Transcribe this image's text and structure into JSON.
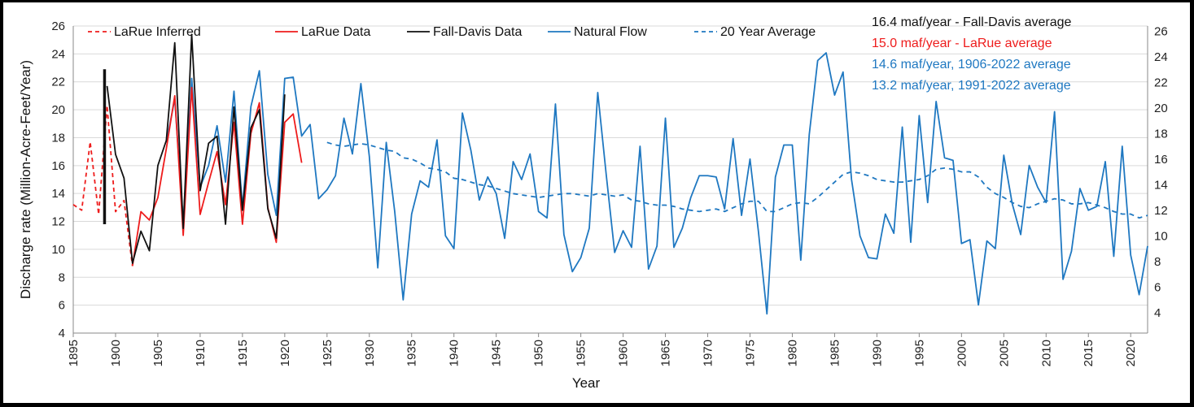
{
  "chart_data": {
    "type": "line",
    "title": "",
    "xlabel": "Year",
    "ylabel": "Discharge rate (Million-Acre-Feet/Year)",
    "xlim": [
      1895,
      2022
    ],
    "ylim": [
      4,
      26
    ],
    "y2lim": [
      2.4,
      26.4
    ],
    "xticks": [
      "1895",
      "1900",
      "1905",
      "1910",
      "1915",
      "1920",
      "1925",
      "1930",
      "1935",
      "1940",
      "1945",
      "1950",
      "1955",
      "1960",
      "1965",
      "1970",
      "1975",
      "1980",
      "1985",
      "1990",
      "1995",
      "2000",
      "2005",
      "2010",
      "2015",
      "2020"
    ],
    "yticks": [
      "4",
      "6",
      "8",
      "10",
      "12",
      "14",
      "16",
      "18",
      "20",
      "22",
      "24",
      "26"
    ],
    "y2ticks": [
      "4",
      "6",
      "8",
      "10",
      "12",
      "14",
      "16",
      "18",
      "20",
      "22",
      "24",
      "26"
    ],
    "colors": {
      "larue": "#ee1c1c",
      "falldavis": "#111111",
      "natural": "#1f78c1",
      "average": "#1f78c1",
      "grid": "#d9d9d9"
    },
    "legend": [
      {
        "key": "larue_inferred",
        "label": "LaRue Inferred",
        "style": "dashed",
        "color": "#ee1c1c"
      },
      {
        "key": "larue_data",
        "label": "LaRue Data",
        "style": "solid",
        "color": "#ee1c1c"
      },
      {
        "key": "falldavis_data",
        "label": "Fall-Davis Data",
        "style": "solid",
        "color": "#111111"
      },
      {
        "key": "natural_flow",
        "label": "Natural Flow",
        "style": "solid",
        "color": "#1f78c1"
      },
      {
        "key": "avg20",
        "label": "20 Year Average",
        "style": "dashed",
        "color": "#1f78c1"
      }
    ],
    "annotations": [
      {
        "text": "16.4 maf/year - Fall-Davis average",
        "color": "#111111"
      },
      {
        "text": "15.0 maf/year - LaRue average",
        "color": "#ee1c1c"
      },
      {
        "text": "14.6 maf/year, 1906-2022 average",
        "color": "#1f78c1"
      },
      {
        "text": "13.2 maf/year, 1991-2022 average",
        "color": "#1f78c1"
      }
    ],
    "series": [
      {
        "name": "LaRue Inferred",
        "axis": "left",
        "x": [
          1895,
          1896,
          1897,
          1898,
          1899,
          1900,
          1901,
          1902
        ],
        "values": [
          13.2,
          12.8,
          17.7,
          12.5,
          20.3,
          12.7,
          13.5,
          8.8
        ]
      },
      {
        "name": "LaRue Data",
        "axis": "left",
        "x": [
          1902,
          1903,
          1904,
          1905,
          1906,
          1907,
          1908,
          1909,
          1910,
          1911,
          1912,
          1913,
          1914,
          1915,
          1916,
          1917,
          1918,
          1919,
          1920,
          1921,
          1922
        ],
        "values": [
          8.8,
          12.7,
          12.1,
          13.7,
          17.2,
          21.0,
          11.0,
          21.6,
          12.5,
          14.8,
          17.0,
          13.2,
          19.1,
          11.8,
          18.3,
          20.5,
          13.0,
          10.5,
          19.1,
          19.7,
          16.2
        ]
      },
      {
        "name": "Fall-Davis Data",
        "axis": "left",
        "x": [
          1899,
          1900,
          1901,
          1902,
          1903,
          1904,
          1905,
          1906,
          1907,
          1908,
          1909,
          1910,
          1911,
          1912,
          1913,
          1914,
          1915,
          1916,
          1917,
          1918,
          1919,
          1920
        ],
        "values": [
          21.7,
          16.8,
          15.1,
          9.0,
          11.3,
          9.9,
          16.0,
          17.8,
          24.8,
          11.5,
          25.4,
          14.2,
          17.6,
          18.1,
          11.8,
          20.2,
          12.8,
          18.7,
          20.0,
          12.9,
          10.8,
          21.1
        ]
      },
      {
        "name": "Fall-Davis vertical bar",
        "axis": "left",
        "x": [
          1898.7,
          1898.7
        ],
        "values": [
          11.8,
          22.9
        ]
      },
      {
        "name": "Natural Flow",
        "axis": "right",
        "x": [
          1906,
          1907,
          1908,
          1909,
          1910,
          1911,
          1912,
          1913,
          1914,
          1915,
          1916,
          1917,
          1918,
          1919,
          1920,
          1921,
          1922,
          1923,
          1924,
          1925,
          1926,
          1927,
          1928,
          1929,
          1930,
          1931,
          1932,
          1933,
          1934,
          1935,
          1936,
          1937,
          1938,
          1939,
          1940,
          1941,
          1942,
          1943,
          1944,
          1945,
          1946,
          1947,
          1948,
          1949,
          1950,
          1951,
          1952,
          1953,
          1954,
          1955,
          1956,
          1957,
          1958,
          1959,
          1960,
          1961,
          1962,
          1963,
          1964,
          1965,
          1966,
          1967,
          1968,
          1969,
          1970,
          1971,
          1972,
          1973,
          1974,
          1975,
          1976,
          1977,
          1978,
          1979,
          1980,
          1981,
          1982,
          1983,
          1984,
          1985,
          1986,
          1987,
          1988,
          1989,
          1990,
          1991,
          1992,
          1993,
          1994,
          1995,
          1996,
          1997,
          1998,
          1999,
          2000,
          2001,
          2002,
          2003,
          2004,
          2005,
          2006,
          2007,
          2008,
          2009,
          2010,
          2011,
          2012,
          2013,
          2014,
          2015,
          2016,
          2017,
          2018,
          2019,
          2020,
          2021,
          2022
        ],
        "values": [
          17.3,
          20.7,
          11.0,
          22.3,
          13.8,
          15.5,
          18.6,
          14.2,
          21.3,
          12.2,
          20.1,
          22.9,
          14.8,
          11.6,
          22.3,
          22.4,
          17.8,
          18.7,
          12.9,
          13.6,
          14.7,
          19.2,
          16.4,
          21.9,
          16.2,
          7.5,
          17.3,
          11.9,
          5.0,
          11.7,
          14.3,
          13.8,
          17.5,
          10.0,
          9.0,
          19.6,
          16.7,
          12.8,
          14.6,
          13.3,
          9.8,
          15.8,
          14.4,
          16.4,
          11.9,
          11.4,
          20.3,
          10.1,
          7.2,
          8.3,
          10.6,
          21.2,
          14.8,
          8.7,
          10.4,
          9.1,
          17.0,
          7.4,
          9.2,
          19.2,
          9.1,
          10.6,
          13.0,
          14.7,
          14.7,
          14.6,
          12.1,
          17.6,
          11.6,
          16.0,
          10.3,
          3.9,
          14.6,
          17.1,
          17.1,
          8.1,
          17.9,
          23.7,
          24.3,
          21.0,
          22.8,
          14.4,
          10.0,
          8.3,
          8.2,
          11.7,
          10.2,
          18.5,
          9.5,
          19.4,
          12.6,
          20.5,
          16.1,
          15.9,
          9.4,
          9.7,
          4.6,
          9.6,
          9.0,
          16.3,
          12.5,
          10.1,
          15.5,
          13.8,
          12.6,
          19.7,
          6.6,
          8.8,
          13.7,
          12.0,
          12.3,
          15.8,
          8.4,
          17.0,
          8.5,
          5.4,
          9.2
        ]
      },
      {
        "name": "20 Year Average",
        "axis": "right",
        "x": [
          1925,
          1926,
          1927,
          1928,
          1929,
          1930,
          1931,
          1932,
          1933,
          1934,
          1935,
          1936,
          1937,
          1938,
          1939,
          1940,
          1941,
          1942,
          1943,
          1944,
          1945,
          1946,
          1947,
          1948,
          1949,
          1950,
          1951,
          1952,
          1953,
          1954,
          1955,
          1956,
          1957,
          1958,
          1959,
          1960,
          1961,
          1962,
          1963,
          1964,
          1965,
          1966,
          1967,
          1968,
          1969,
          1970,
          1971,
          1972,
          1973,
          1974,
          1975,
          1976,
          1977,
          1978,
          1979,
          1980,
          1981,
          1982,
          1983,
          1984,
          1985,
          1986,
          1987,
          1988,
          1989,
          1990,
          1991,
          1992,
          1993,
          1994,
          1995,
          1996,
          1997,
          1998,
          1999,
          2000,
          2001,
          2002,
          2003,
          2004,
          2005,
          2006,
          2007,
          2008,
          2009,
          2010,
          2011,
          2012,
          2013,
          2014,
          2015,
          2016,
          2017,
          2018,
          2019,
          2020,
          2021,
          2022
        ],
        "values": [
          17.3,
          17.1,
          17.0,
          17.1,
          17.2,
          17.1,
          16.9,
          16.7,
          16.6,
          16.1,
          16.0,
          15.7,
          15.3,
          15.2,
          15.0,
          14.5,
          14.4,
          14.2,
          14.0,
          13.9,
          13.7,
          13.5,
          13.3,
          13.2,
          13.1,
          13.0,
          13.1,
          13.2,
          13.3,
          13.3,
          13.2,
          13.1,
          13.3,
          13.2,
          13.1,
          13.2,
          12.8,
          12.7,
          12.5,
          12.4,
          12.4,
          12.3,
          12.1,
          12.0,
          11.9,
          12.0,
          12.1,
          11.9,
          12.2,
          12.5,
          12.7,
          12.7,
          11.9,
          11.9,
          12.2,
          12.5,
          12.6,
          12.5,
          13.0,
          13.6,
          14.2,
          14.8,
          15.0,
          14.9,
          14.7,
          14.4,
          14.3,
          14.2,
          14.2,
          14.3,
          14.4,
          14.7,
          15.2,
          15.3,
          15.2,
          15.0,
          15.0,
          14.6,
          13.8,
          13.3,
          13.0,
          12.6,
          12.3,
          12.2,
          12.5,
          12.7,
          12.9,
          12.8,
          12.5,
          12.5,
          12.6,
          12.4,
          12.2,
          11.9,
          11.7,
          11.7,
          11.4,
          11.6
        ]
      }
    ]
  }
}
